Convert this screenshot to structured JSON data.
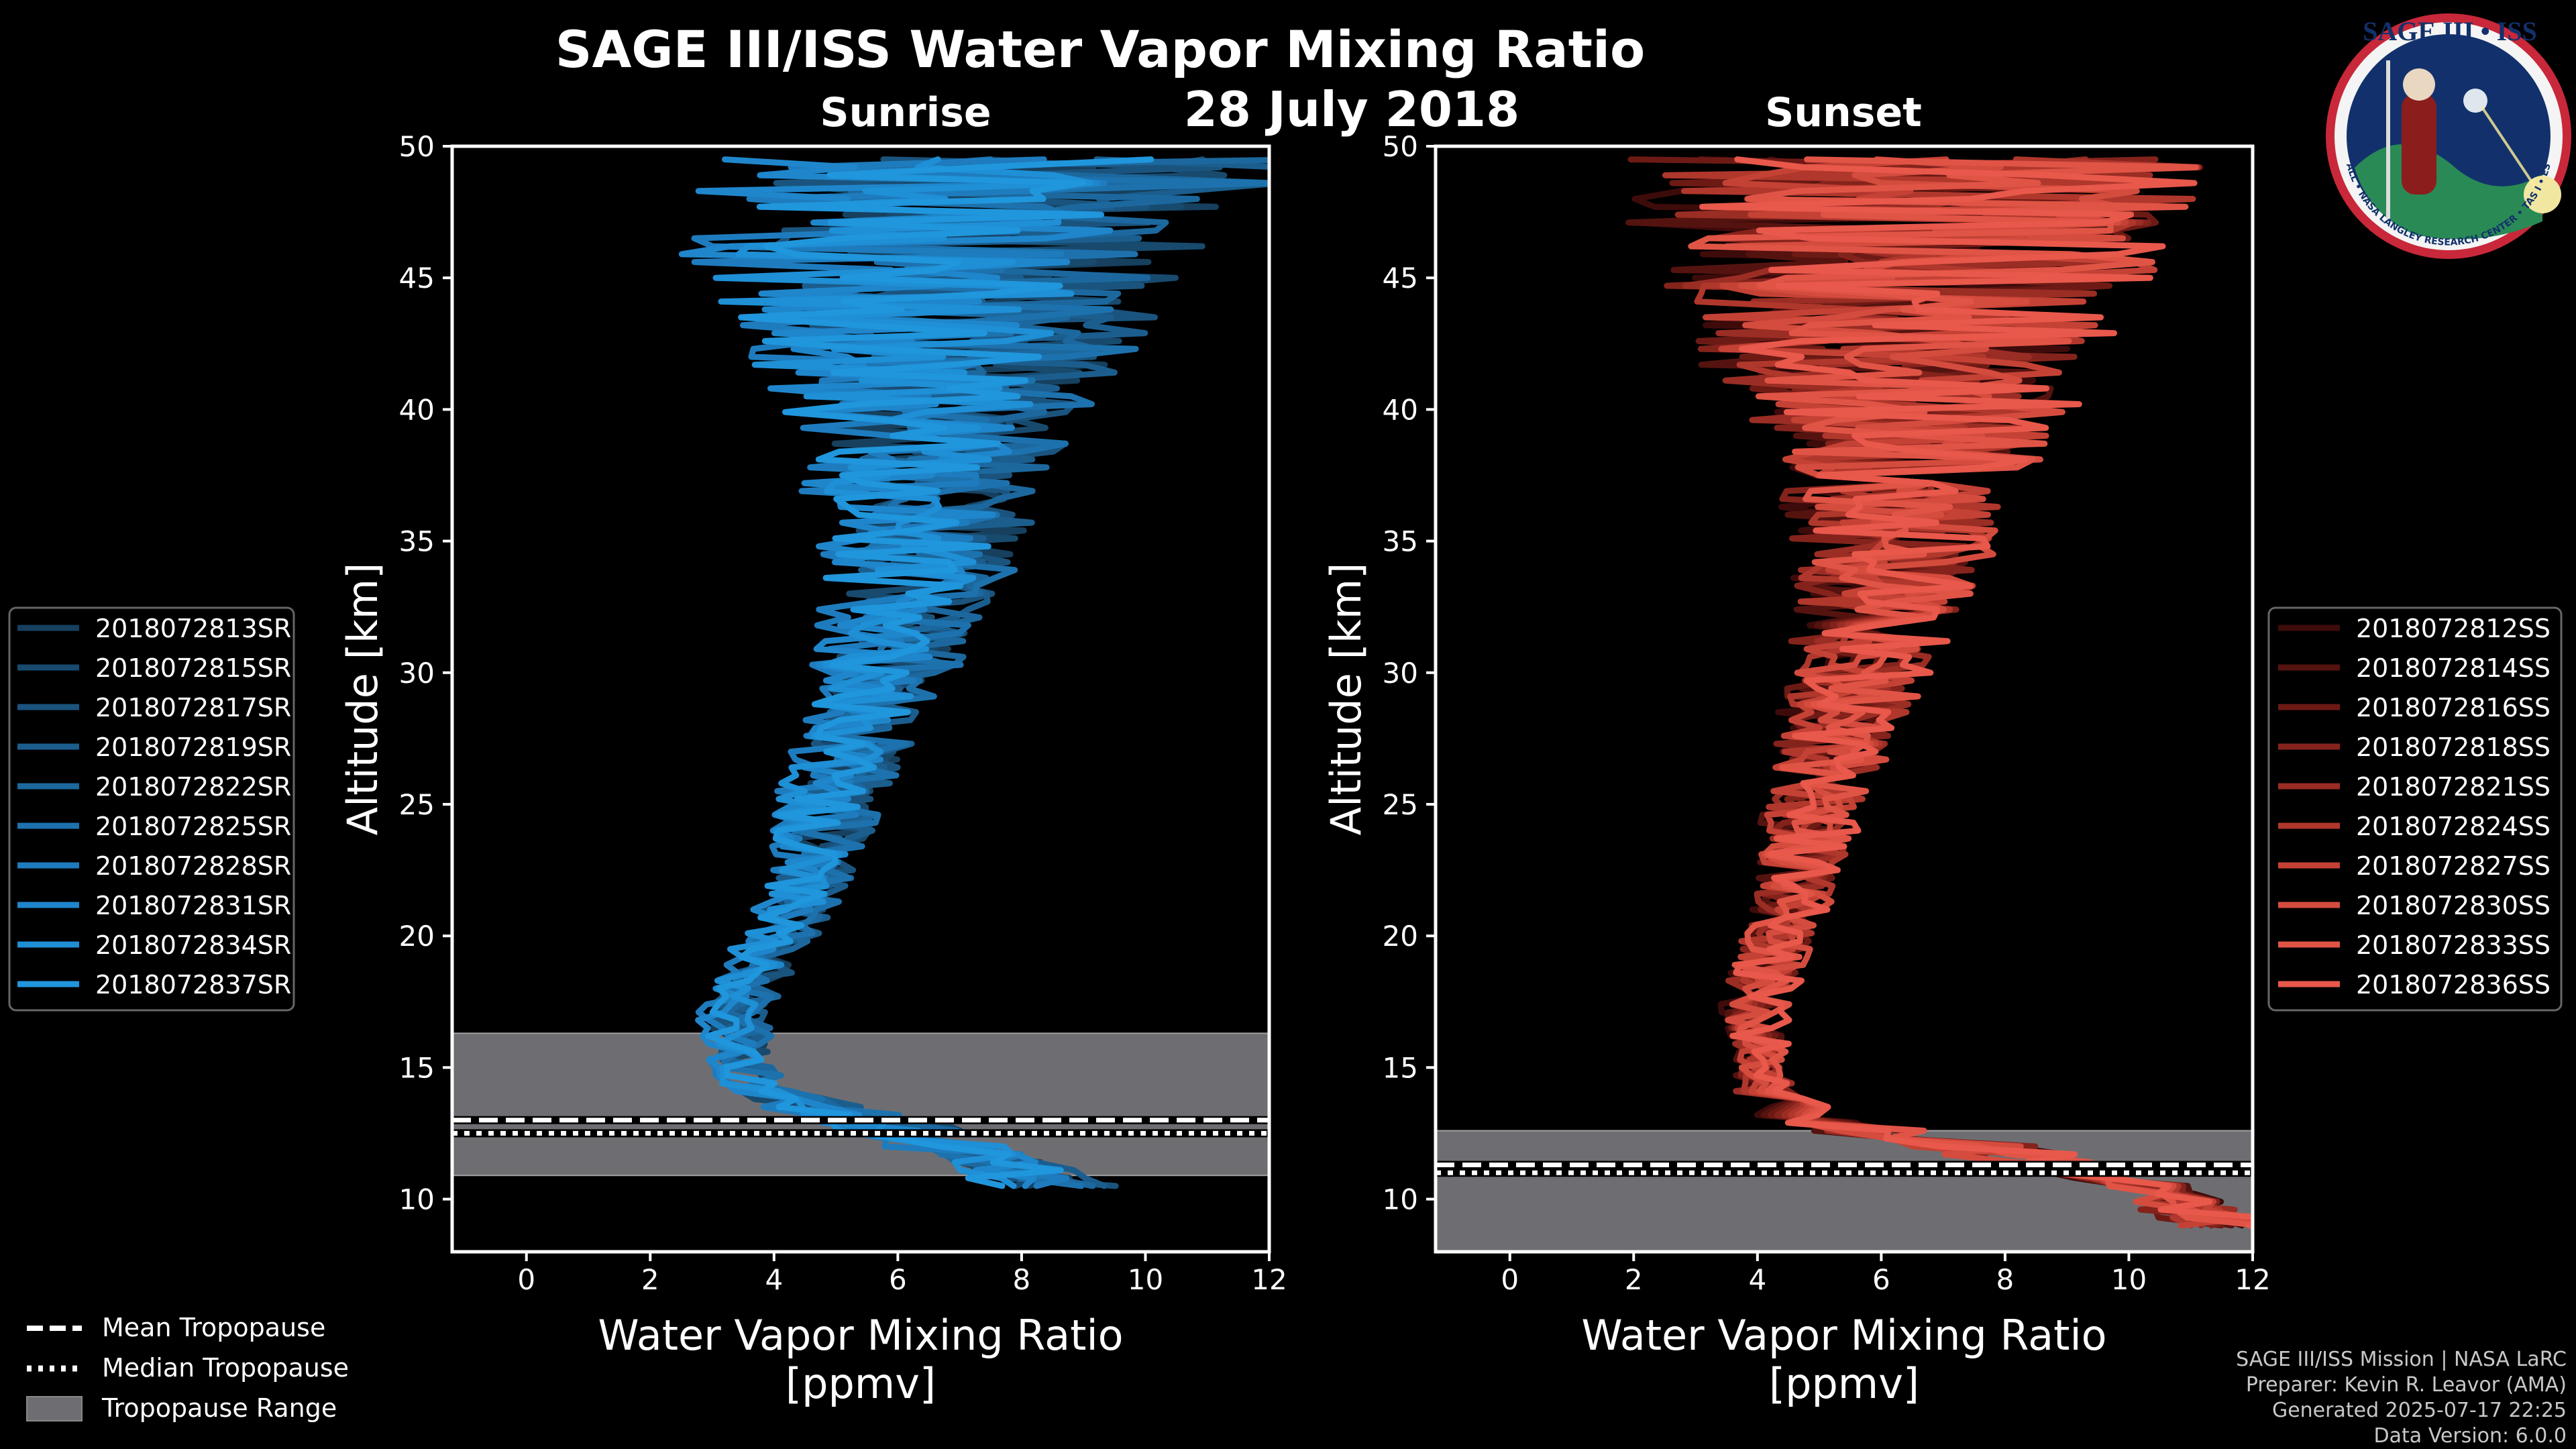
{
  "title": "SAGE III/ISS Water Vapor Mixing Ratio",
  "date": "28 July 2018",
  "logo": {
    "text": "SAGE III • ISS",
    "ring": "BALL • NASA LANGLEY RESEARCH CENTER • TAS I • ESA"
  },
  "credits": [
    "SAGE III/ISS Mission | NASA LaRC",
    "Preparer: Kevin R. Leavor (AMA)",
    "Generated 2025-07-17 22:25",
    "Data Version: 6.0.0"
  ],
  "tropo_legend": [
    "Mean Tropopause",
    "Median Tropopause",
    "Tropopause Range"
  ],
  "colors": {
    "sunrise": "#1f8fd6",
    "sunset": "#e8574a",
    "range": "#6e6e72"
  },
  "chart_data": [
    {
      "type": "line",
      "panel": "Sunrise",
      "title": "Sunrise",
      "xlabel": "Water Vapor Mixing Ratio [ppmv]",
      "ylabel": "Altitude [km]",
      "xlim": [
        -1.2,
        12
      ],
      "ylim": [
        8,
        50
      ],
      "xticks": [
        0,
        2,
        4,
        6,
        8,
        10,
        12
      ],
      "yticks": [
        10,
        15,
        20,
        25,
        30,
        35,
        40,
        45,
        50
      ],
      "tropopause": {
        "mean": 13.0,
        "median": 12.5,
        "range": [
          10.9,
          16.3
        ]
      },
      "series": [
        {
          "name": "2018072813SR",
          "color": "#16405e"
        },
        {
          "name": "2018072815SR",
          "color": "#184a6e"
        },
        {
          "name": "2018072817SR",
          "color": "#1a547e"
        },
        {
          "name": "2018072819SR",
          "color": "#1b5e8e"
        },
        {
          "name": "2018072822SR",
          "color": "#1c689e"
        },
        {
          "name": "2018072825SR",
          "color": "#1d72ae"
        },
        {
          "name": "2018072828SR",
          "color": "#1e7cbe"
        },
        {
          "name": "2018072831SR",
          "color": "#1f86cc"
        },
        {
          "name": "2018072834SR",
          "color": "#1f8fd6"
        },
        {
          "name": "2018072837SR",
          "color": "#2096dc"
        }
      ],
      "profile": {
        "altitude": [
          10.5,
          12,
          13,
          14,
          15,
          17,
          19,
          21,
          23,
          25,
          27,
          29,
          31,
          33,
          35,
          37,
          39,
          41,
          43,
          45,
          47,
          49.5
        ],
        "mean": [
          8.5,
          7.0,
          5.5,
          3.8,
          3.5,
          3.3,
          3.8,
          4.3,
          4.7,
          4.9,
          5.2,
          5.6,
          5.9,
          6.2,
          6.4,
          6.5,
          6.6,
          6.6,
          6.7,
          6.8,
          7.0,
          7.5
        ],
        "spread": [
          0.9,
          1.0,
          0.9,
          0.5,
          0.4,
          0.5,
          0.5,
          0.6,
          0.6,
          0.7,
          0.8,
          0.9,
          1.0,
          1.2,
          1.4,
          1.6,
          1.9,
          2.3,
          2.8,
          3.3,
          3.8,
          4.3
        ]
      }
    },
    {
      "type": "line",
      "panel": "Sunset",
      "title": "Sunset",
      "xlabel": "Water Vapor Mixing Ratio [ppmv]",
      "ylabel": "Altitude [km]",
      "xlim": [
        -1.2,
        12
      ],
      "ylim": [
        8,
        50
      ],
      "xticks": [
        0,
        2,
        4,
        6,
        8,
        10,
        12
      ],
      "yticks": [
        10,
        15,
        20,
        25,
        30,
        35,
        40,
        45,
        50
      ],
      "tropopause": {
        "mean": 11.3,
        "median": 11.0,
        "range": [
          8.0,
          12.6
        ]
      },
      "series": [
        {
          "name": "2018072812SS",
          "color": "#3e0b0b"
        },
        {
          "name": "2018072814SS",
          "color": "#551310"
        },
        {
          "name": "2018072816SS",
          "color": "#6d1a15"
        },
        {
          "name": "2018072818SS",
          "color": "#84231c"
        },
        {
          "name": "2018072821SS",
          "color": "#9a2d24"
        },
        {
          "name": "2018072824SS",
          "color": "#b0372c"
        },
        {
          "name": "2018072827SS",
          "color": "#c44235"
        },
        {
          "name": "2018072830SS",
          "color": "#d44c3e"
        },
        {
          "name": "2018072833SS",
          "color": "#e05446"
        },
        {
          "name": "2018072836SS",
          "color": "#e8584b"
        }
      ],
      "profile": {
        "altitude": [
          9,
          10.5,
          12,
          13,
          14,
          15,
          17,
          19,
          21,
          23,
          25,
          27,
          29,
          31,
          33,
          35,
          37,
          39,
          41,
          43,
          45,
          47,
          49.5
        ],
        "mean": [
          11.5,
          10.5,
          7.5,
          5.0,
          4.2,
          4.1,
          4.0,
          4.2,
          4.6,
          4.8,
          5.0,
          5.3,
          5.6,
          5.9,
          6.2,
          6.4,
          6.5,
          6.6,
          6.6,
          6.7,
          6.8,
          7.0,
          7.5
        ],
        "spread": [
          0.8,
          1.0,
          1.2,
          0.8,
          0.5,
          0.4,
          0.5,
          0.6,
          0.6,
          0.7,
          0.8,
          0.9,
          1.0,
          1.2,
          1.4,
          1.6,
          1.9,
          2.3,
          2.8,
          3.3,
          3.8,
          4.3,
          4.8
        ]
      }
    }
  ]
}
